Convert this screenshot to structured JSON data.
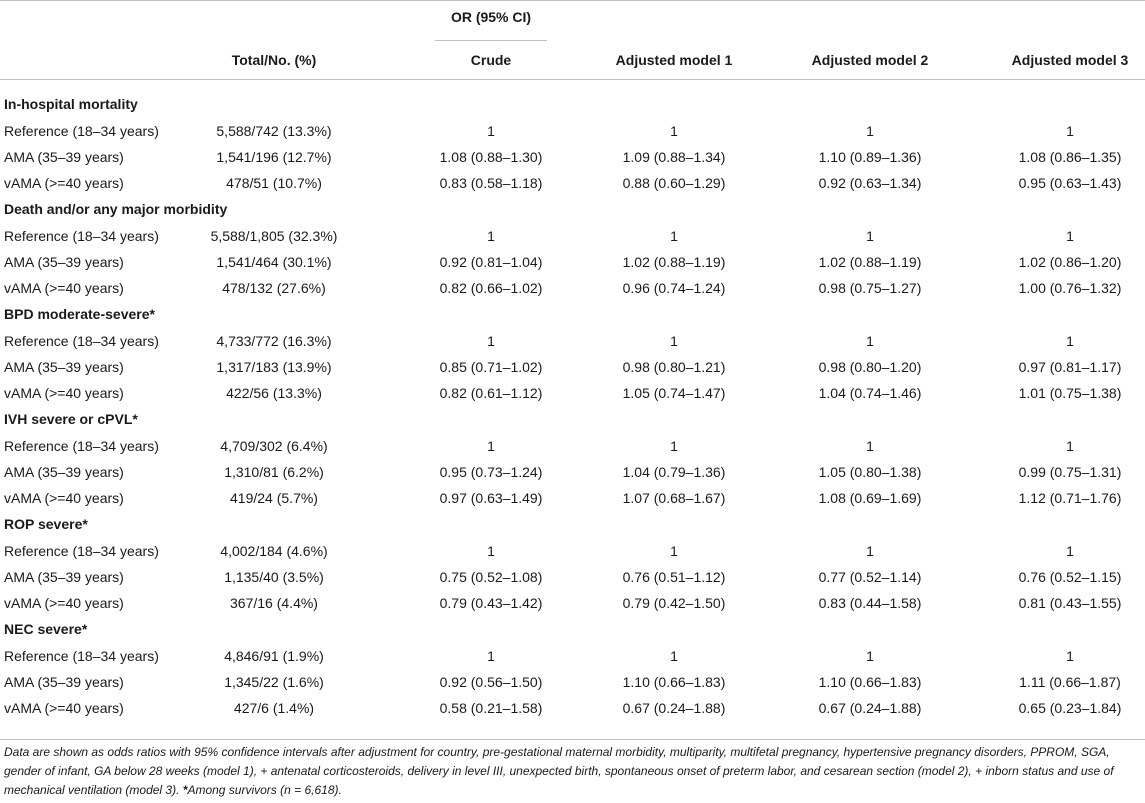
{
  "header": {
    "group_label": "OR (95% CI)",
    "columns": [
      "",
      "Total/No. (%)",
      "Crude",
      "Adjusted model 1",
      "Adjusted model 2",
      "Adjusted model 3"
    ]
  },
  "sections": [
    {
      "title": "In-hospital mortality",
      "rows": [
        [
          "Reference (18–34 years)",
          "5,588/742 (13.3%)",
          "1",
          "1",
          "1",
          "1"
        ],
        [
          "AMA (35–39 years)",
          "1,541/196 (12.7%)",
          "1.08 (0.88–1.30)",
          "1.09 (0.88–1.34)",
          "1.10 (0.89–1.36)",
          "1.08 (0.86–1.35)"
        ],
        [
          "vAMA (>=40 years)",
          "478/51 (10.7%)",
          "0.83 (0.58–1.18)",
          "0.88 (0.60–1.29)",
          "0.92 (0.63–1.34)",
          "0.95 (0.63–1.43)"
        ]
      ]
    },
    {
      "title": "Death and/or any major morbidity",
      "rows": [
        [
          "Reference (18–34 years)",
          "5,588/1,805 (32.3%)",
          "1",
          "1",
          "1",
          "1"
        ],
        [
          "AMA (35–39 years)",
          "1,541/464 (30.1%)",
          "0.92 (0.81–1.04)",
          "1.02 (0.88–1.19)",
          "1.02 (0.88–1.19)",
          "1.02 (0.86–1.20)"
        ],
        [
          "vAMA (>=40 years)",
          "478/132 (27.6%)",
          "0.82 (0.66–1.02)",
          "0.96 (0.74–1.24)",
          "0.98 (0.75–1.27)",
          "1.00 (0.76–1.32)"
        ]
      ]
    },
    {
      "title": "BPD moderate-severe*",
      "rows": [
        [
          "Reference (18–34 years)",
          "4,733/772 (16.3%)",
          "1",
          "1",
          "1",
          "1"
        ],
        [
          "AMA (35–39 years)",
          "1,317/183 (13.9%)",
          "0.85 (0.71–1.02)",
          "0.98 (0.80–1.21)",
          "0.98 (0.80–1.20)",
          "0.97 (0.81–1.17)"
        ],
        [
          "vAMA (>=40 years)",
          "422/56 (13.3%)",
          "0.82 (0.61–1.12)",
          "1.05 (0.74–1.47)",
          "1.04 (0.74–1.46)",
          "1.01 (0.75–1.38)"
        ]
      ]
    },
    {
      "title": "IVH severe or cPVL*",
      "rows": [
        [
          "Reference (18–34 years)",
          "4,709/302 (6.4%)",
          "1",
          "1",
          "1",
          "1"
        ],
        [
          "AMA (35–39 years)",
          "1,310/81 (6.2%)",
          "0.95 (0.73–1.24)",
          "1.04 (0.79–1.36)",
          "1.05 (0.80–1.38)",
          "0.99 (0.75–1.31)"
        ],
        [
          "vAMA (>=40 years)",
          "419/24 (5.7%)",
          "0.97 (0.63–1.49)",
          "1.07 (0.68–1.67)",
          "1.08 (0.69–1.69)",
          "1.12 (0.71–1.76)"
        ]
      ]
    },
    {
      "title": "ROP severe*",
      "rows": [
        [
          "Reference (18–34 years)",
          "4,002/184 (4.6%)",
          "1",
          "1",
          "1",
          "1"
        ],
        [
          "AMA (35–39 years)",
          "1,135/40 (3.5%)",
          "0.75 (0.52–1.08)",
          "0.76 (0.51–1.12)",
          "0.77 (0.52–1.14)",
          "0.76 (0.52–1.15)"
        ],
        [
          "vAMA (>=40 years)",
          "367/16 (4.4%)",
          "0.79 (0.43–1.42)",
          "0.79 (0.42–1.50)",
          "0.83 (0.44–1.58)",
          "0.81 (0.43–1.55)"
        ]
      ]
    },
    {
      "title": "NEC severe*",
      "rows": [
        [
          "Reference (18–34 years)",
          "4,846/91 (1.9%)",
          "1",
          "1",
          "1",
          "1"
        ],
        [
          "AMA (35–39 years)",
          "1,345/22 (1.6%)",
          "0.92 (0.56–1.50)",
          "1.10 (0.66–1.83)",
          "1.10 (0.66–1.83)",
          "1.11 (0.66–1.87)"
        ],
        [
          "vAMA (>=40 years)",
          "427/6 (1.4%)",
          "0.58 (0.21–1.58)",
          "0.67 (0.24–1.88)",
          "0.67 (0.24–1.88)",
          "0.65 (0.23–1.84)"
        ]
      ]
    }
  ],
  "footnote": {
    "main": "Data are shown as odds ratios with 95% confidence intervals after adjustment for country, pre-gestational maternal morbidity, multiparity, multifetal pregnancy, hypertensive pregnancy disorders, PPROM, SGA, gender of infant, GA below 28 weeks (model 1), + antenatal corticosteroids, delivery in level III, unexpected birth, spontaneous onset of preterm labor, and cesarean section (model 2), + inborn status and use of mechanical ventilation (model 3). ",
    "asterisk": "*",
    "survivors": "Among survivors (n = 6,618)."
  }
}
